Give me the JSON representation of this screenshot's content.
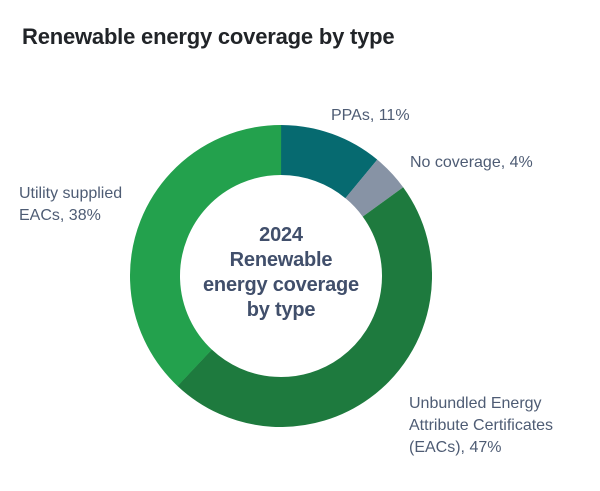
{
  "chart_data": {
    "type": "pie",
    "subtype": "donut",
    "title": "Renewable energy coverage by type",
    "center_label_lines": [
      "2024",
      "Renewable",
      "energy coverage",
      "by type"
    ],
    "center_label": "2024 Renewable energy coverage by type",
    "start_position": "top",
    "direction": "clockwise",
    "inner_radius_ratio": 0.67,
    "total": 100,
    "slices": [
      {
        "label": "PPAs",
        "value": 11,
        "color": "#066a70",
        "display": "PPAs, 11%"
      },
      {
        "label": "No coverage",
        "value": 4,
        "color": "#8793a5",
        "display": "No coverage, 4%"
      },
      {
        "label": "Unbundled Energy Attribute Certificates (EACs)",
        "value": 47,
        "color": "#1e7a3e",
        "display": "Unbundled Energy Attribute Certificates (EACs), 47%"
      },
      {
        "label": "Utility supplied EACs",
        "value": 38,
        "color": "#23a14d",
        "display": "Utility supplied EACs, 38%"
      }
    ],
    "colors": {
      "title_text": "#212428",
      "center_text": "#414f6b",
      "label_text": "#4e5c74",
      "background": "#ffffff"
    }
  }
}
